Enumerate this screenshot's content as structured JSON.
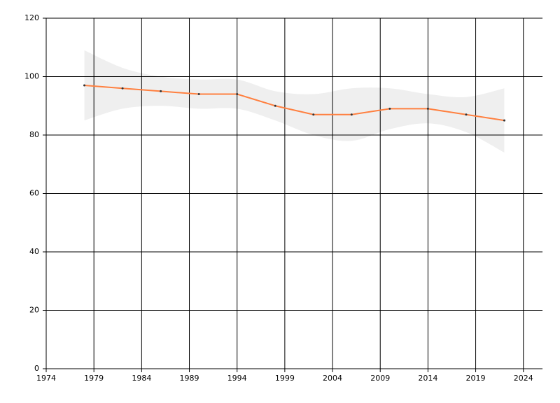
{
  "chart_data": {
    "type": "line",
    "x": [
      1978,
      1982,
      1986,
      1990,
      1994,
      1998,
      2002,
      2006,
      2010,
      2014,
      2018,
      2022
    ],
    "series": [
      {
        "values": [
          97,
          96,
          95,
          94,
          94,
          90,
          87,
          87,
          89,
          89,
          87,
          85
        ],
        "color": "#ff8040",
        "band_upper": [
          109,
          103,
          100,
          99,
          99,
          95,
          94,
          96,
          96,
          94,
          93,
          96
        ],
        "band_lower": [
          85,
          89,
          90,
          89,
          89,
          85,
          80,
          78,
          82,
          84,
          81,
          74
        ],
        "band_color": "#efefef"
      }
    ],
    "xlim": [
      1974,
      2026
    ],
    "xticks": [
      1974,
      1979,
      1984,
      1989,
      1994,
      1999,
      2004,
      2009,
      2014,
      2019,
      2024
    ],
    "ylim": [
      0,
      120
    ],
    "yticks": [
      0,
      20,
      40,
      60,
      80,
      100,
      120
    ],
    "grid": true
  }
}
